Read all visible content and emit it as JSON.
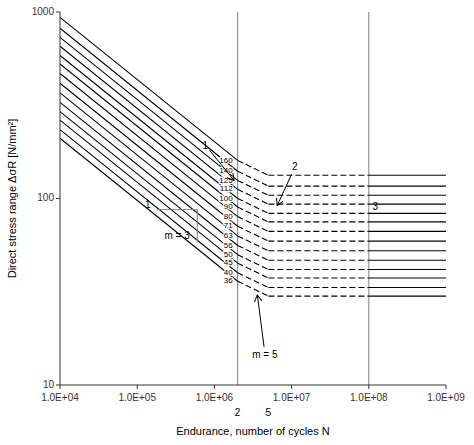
{
  "chart_data": {
    "type": "line",
    "log": true,
    "grid": false,
    "xlabel": "Endurance, number of cycles N",
    "ylabel": "Direct stress range ΔσR [N/mm²]",
    "xlim": [
      10000,
      1000000000
    ],
    "ylim": [
      10,
      1000
    ],
    "xticks": [
      {
        "value": 10000,
        "label": "1.0E+04"
      },
      {
        "value": 100000,
        "label": "1.0E+05"
      },
      {
        "value": 1000000,
        "label": "1.0E+06"
      },
      {
        "value": 10000000,
        "label": "1.0E+07"
      },
      {
        "value": 100000000,
        "label": "1.0E+08"
      },
      {
        "value": 1000000000,
        "label": "1.0E+09"
      }
    ],
    "yticks": [
      10,
      100,
      1000
    ],
    "color": "#000000",
    "background_color": "#ffffff",
    "x": [
      10000,
      2000000,
      5000000,
      100000000,
      1000000000
    ],
    "segment_line_styles": [
      "solid",
      "dashed",
      "dashed",
      "solid"
    ],
    "series": [
      {
        "name": "160",
        "values": [
          935.686,
          160,
          133.209,
          133.209,
          133.209
        ]
      },
      {
        "name": "140",
        "values": [
          818.725,
          140,
          116.557,
          116.557,
          116.557
        ]
      },
      {
        "name": "125",
        "values": [
          731.004,
          125,
          104.069,
          104.069,
          104.069
        ]
      },
      {
        "name": "112",
        "values": [
          654.98,
          112,
          93.246,
          93.246,
          93.246
        ]
      },
      {
        "name": "100",
        "values": [
          584.804,
          100,
          83.255,
          83.255,
          83.255
        ]
      },
      {
        "name": "90",
        "values": [
          526.323,
          90,
          74.93,
          74.93,
          74.93
        ]
      },
      {
        "name": "80",
        "values": [
          467.843,
          80,
          66.604,
          66.604,
          66.604
        ]
      },
      {
        "name": "71",
        "values": [
          415.211,
          71,
          59.111,
          59.111,
          59.111
        ]
      },
      {
        "name": "63",
        "values": [
          368.426,
          63,
          52.451,
          52.451,
          52.451
        ]
      },
      {
        "name": "56",
        "values": [
          327.49,
          56,
          46.623,
          46.623,
          46.623
        ]
      },
      {
        "name": "50",
        "values": [
          292.402,
          50,
          41.628,
          41.628,
          41.628
        ]
      },
      {
        "name": "45",
        "values": [
          263.162,
          45,
          37.465,
          37.465,
          37.465
        ]
      },
      {
        "name": "40",
        "values": [
          233.921,
          40,
          33.302,
          33.302,
          33.302
        ]
      },
      {
        "name": "36",
        "values": [
          210.529,
          36,
          29.972,
          29.972,
          29.972
        ]
      }
    ],
    "reference_lines": [
      {
        "x": 2000000,
        "color": "#808080"
      },
      {
        "x": 100000000,
        "color": "#808080"
      }
    ],
    "slope_triangle": {
      "x": [
        180000,
        600000,
        600000
      ],
      "values": [
        87.137,
        87.137,
        58.333
      ],
      "color": "#808080"
    },
    "annotations": [
      {
        "text": "1",
        "x": 158400,
        "y": 87.137,
        "position": "left"
      },
      {
        "text": "m = 3",
        "x": 328634.7,
        "y": 67.967,
        "position": "below"
      },
      {
        "text": "1",
        "x": 760000,
        "y": 185,
        "arrow_x": 1800000,
        "arrow_y": 125
      },
      {
        "text": "2",
        "x": 11000000,
        "y": 141.534,
        "arrow_x": 6500000,
        "arrow_y": 91.581
      },
      {
        "text": "3",
        "x": 105000000,
        "y": 89.749,
        "position": "right"
      },
      {
        "text": "m = 5",
        "x": 4500000,
        "y": 14,
        "arrow_x": 3600000,
        "arrow_y": 30.407
      },
      {
        "text": "2",
        "x": 2000000
      },
      {
        "text": "5",
        "x": 5000000
      }
    ]
  }
}
